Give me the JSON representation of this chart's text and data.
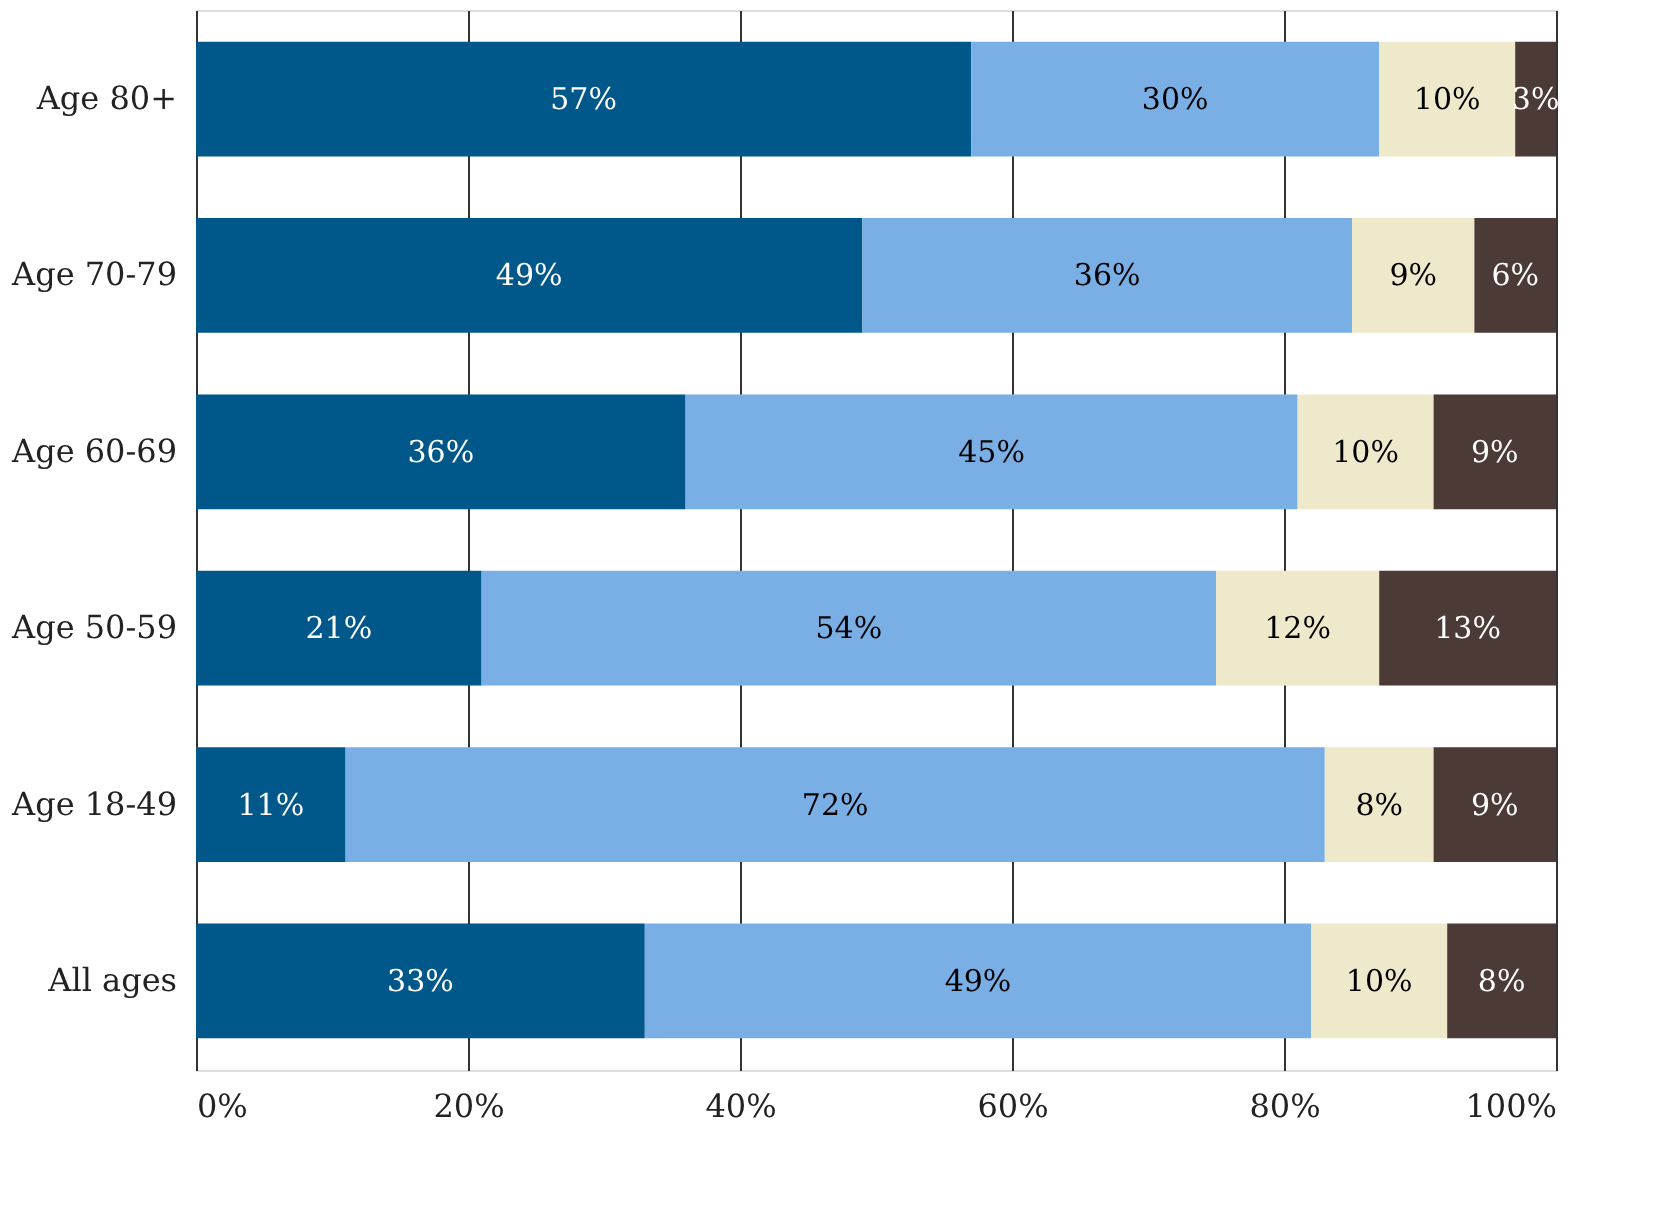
{
  "chart_data": {
    "type": "bar",
    "orientation": "horizontal",
    "stacked": true,
    "categories": [
      "Age 80+",
      "Age 70-79",
      "Age 60-69",
      "Age 50-59",
      "Age 18-49",
      "All ages"
    ],
    "series": [
      {
        "color": "#00578a",
        "values": [
          57,
          49,
          36,
          21,
          11,
          33
        ],
        "value_labels": [
          "57%",
          "49%",
          "36%",
          "21%",
          "11%",
          "33%"
        ]
      },
      {
        "color": "#7aafe6",
        "values": [
          30,
          36,
          45,
          54,
          72,
          49
        ],
        "value_labels": [
          "30%",
          "36%",
          "45%",
          "54%",
          "72%",
          "49%"
        ]
      },
      {
        "color": "#efe9cc",
        "values": [
          10,
          9,
          10,
          12,
          8,
          10
        ],
        "value_labels": [
          "10%",
          "9%",
          "10%",
          "12%",
          "8%",
          "10%"
        ]
      },
      {
        "color": "#4b3a36",
        "values": [
          3,
          6,
          9,
          13,
          9,
          8
        ],
        "value_labels": [
          "3%",
          "6%",
          "9%",
          "13%",
          "9%",
          "8%"
        ]
      }
    ],
    "xlim": [
      0,
      100
    ],
    "xticks": [
      {
        "value": 0,
        "label": "0%"
      },
      {
        "value": 20,
        "label": "20%"
      },
      {
        "value": 40,
        "label": "40%"
      },
      {
        "value": 60,
        "label": "60%"
      },
      {
        "value": 80,
        "label": "80%"
      },
      {
        "value": 100,
        "label": "100%"
      }
    ],
    "grid": "x",
    "legend": false
  }
}
